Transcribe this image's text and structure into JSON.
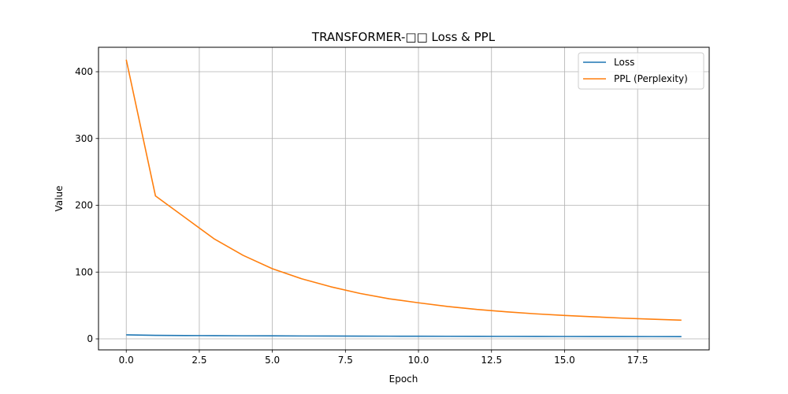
{
  "chart_data": {
    "type": "line",
    "title": "TRANSFORMER-□□ Loss & PPL",
    "xlabel": "Epoch",
    "ylabel": "Value",
    "xlim": [
      -0.95,
      19.95
    ],
    "ylim": [
      -16.5,
      436.6
    ],
    "x_ticks": [
      0.0,
      2.5,
      5.0,
      7.5,
      10.0,
      12.5,
      15.0,
      17.5
    ],
    "x_tick_labels": [
      "0.0",
      "2.5",
      "5.0",
      "7.5",
      "10.0",
      "12.5",
      "15.0",
      "17.5"
    ],
    "y_ticks": [
      0,
      100,
      200,
      300,
      400
    ],
    "y_tick_labels": [
      "0",
      "100",
      "200",
      "300",
      "400"
    ],
    "grid": true,
    "legend_position": "top-right",
    "x": [
      0,
      1,
      2,
      3,
      4,
      5,
      6,
      7,
      8,
      9,
      10,
      11,
      12,
      13,
      14,
      15,
      16,
      17,
      18,
      19
    ],
    "series": [
      {
        "name": "Loss",
        "color": "#1f77b4",
        "values": [
          6.0,
          5.3,
          5.0,
          4.8,
          4.6,
          4.5,
          4.3,
          4.2,
          4.1,
          4.0,
          3.9,
          3.85,
          3.75,
          3.7,
          3.6,
          3.55,
          3.5,
          3.45,
          3.4,
          3.35
        ]
      },
      {
        "name": "PPL (Perplexity)",
        "color": "#ff7f0e",
        "values": [
          418,
          214,
          182,
          150,
          125,
          105,
          90,
          78,
          68,
          60,
          54,
          48.5,
          44,
          40.5,
          37.5,
          35,
          33,
          31,
          29.5,
          28
        ]
      }
    ]
  }
}
